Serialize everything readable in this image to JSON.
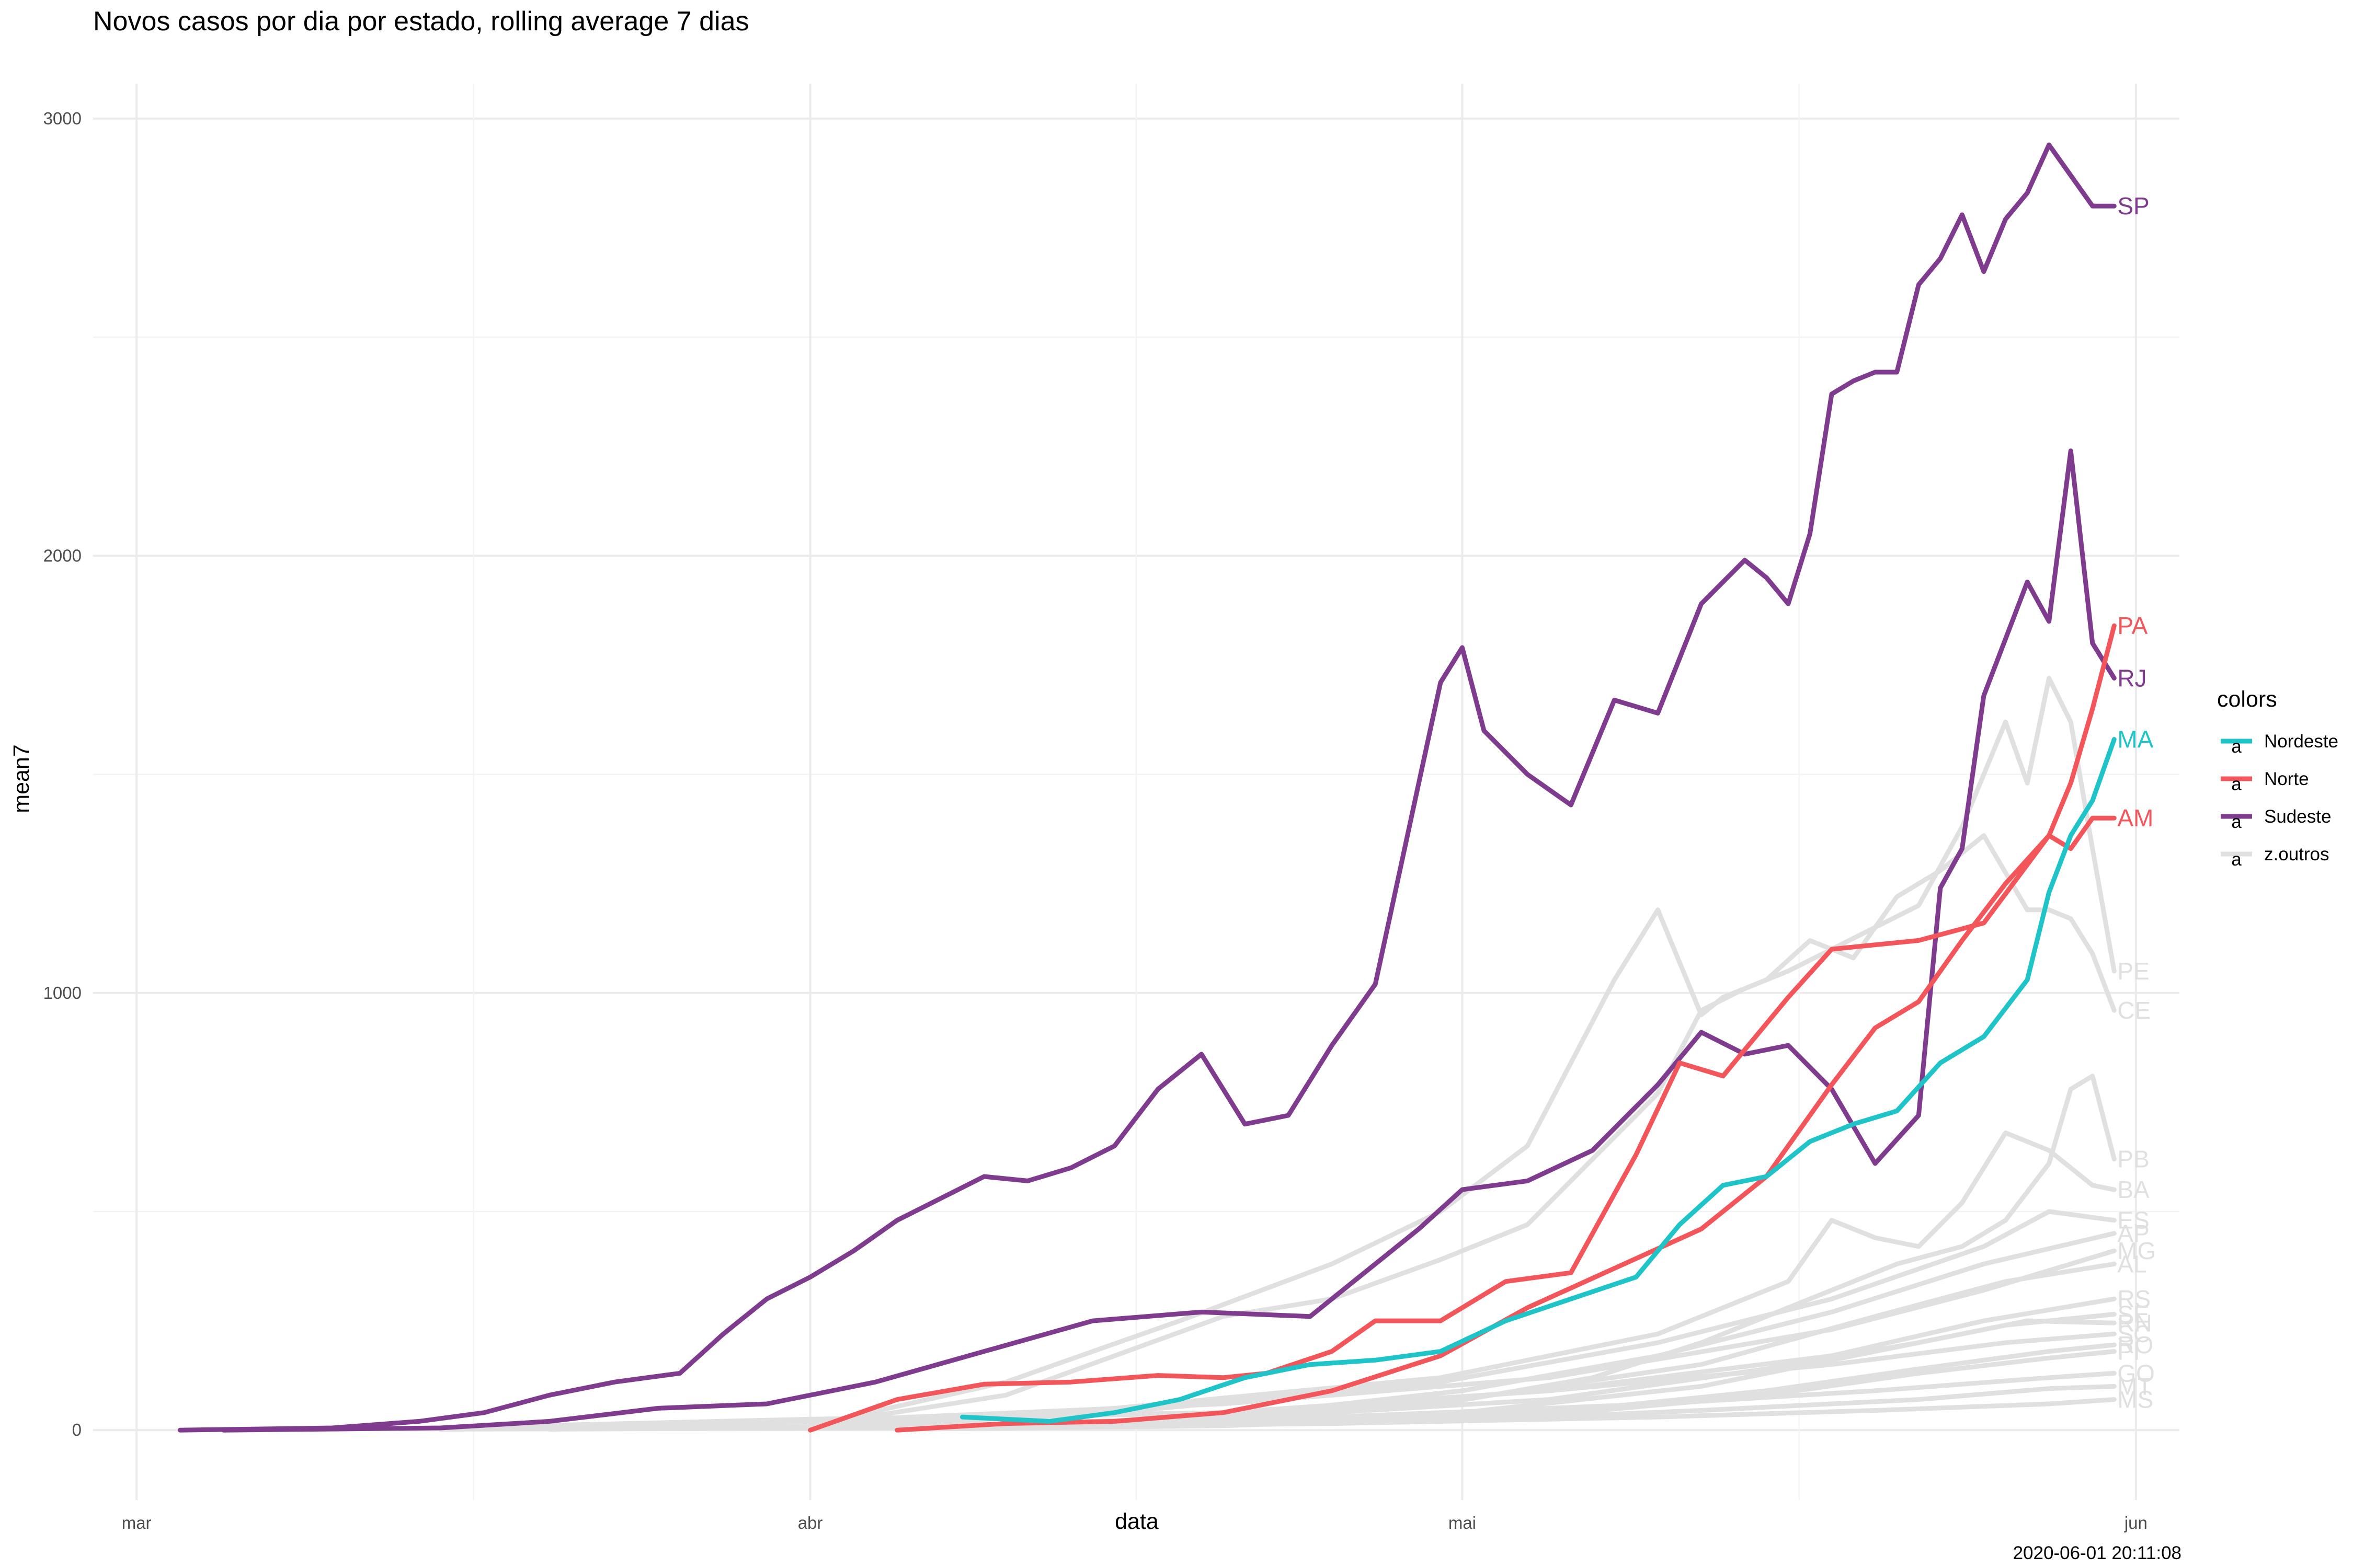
{
  "chart_data": {
    "type": "line",
    "title": "Novos casos por dia por estado, rolling average 7 dias",
    "xlabel": "data",
    "ylabel": "mean7",
    "caption": "2020-06-01 20:11:08",
    "x_ticks": [
      {
        "date": "2020-03-01",
        "label": "mar"
      },
      {
        "date": "2020-04-01",
        "label": "abr"
      },
      {
        "date": "2020-05-01",
        "label": "mai"
      },
      {
        "date": "2020-06-01",
        "label": "jun"
      }
    ],
    "y_ticks": [
      0,
      1000,
      2000,
      3000
    ],
    "xlim": [
      "2020-02-28",
      "2020-06-03"
    ],
    "ylim": [
      -160,
      3080
    ],
    "grid": true,
    "legend": {
      "title": "colors",
      "position": "right",
      "glyph": "a",
      "entries": [
        {
          "label": "Nordeste",
          "color": "#1ec4c8"
        },
        {
          "label": "Norte",
          "color": "#f2555a"
        },
        {
          "label": "Sudeste",
          "color": "#7f3b8d"
        },
        {
          "label": "z.outros",
          "color": "#e0e0e0"
        }
      ]
    },
    "series": [
      {
        "name": "SP",
        "group": "Sudeste",
        "color": "#7f3b8d",
        "x": [
          "2020-03-03",
          "2020-03-10",
          "2020-03-14",
          "2020-03-17",
          "2020-03-20",
          "2020-03-23",
          "2020-03-26",
          "2020-03-28",
          "2020-03-30",
          "2020-04-01",
          "2020-04-03",
          "2020-04-05",
          "2020-04-07",
          "2020-04-09",
          "2020-04-11",
          "2020-04-13",
          "2020-04-15",
          "2020-04-17",
          "2020-04-19",
          "2020-04-21",
          "2020-04-23",
          "2020-04-25",
          "2020-04-27",
          "2020-04-28",
          "2020-04-29",
          "2020-04-30",
          "2020-05-01",
          "2020-05-02",
          "2020-05-04",
          "2020-05-06",
          "2020-05-08",
          "2020-05-10",
          "2020-05-12",
          "2020-05-14",
          "2020-05-15",
          "2020-05-16",
          "2020-05-17",
          "2020-05-18",
          "2020-05-19",
          "2020-05-20",
          "2020-05-21",
          "2020-05-22",
          "2020-05-23",
          "2020-05-24",
          "2020-05-25",
          "2020-05-26",
          "2020-05-27",
          "2020-05-28",
          "2020-05-29",
          "2020-05-30",
          "2020-05-31"
        ],
        "y": [
          0,
          5,
          20,
          40,
          80,
          110,
          130,
          220,
          300,
          350,
          410,
          480,
          530,
          580,
          570,
          600,
          650,
          780,
          860,
          700,
          720,
          880,
          1020,
          1250,
          1480,
          1710,
          1790,
          1600,
          1500,
          1430,
          1670,
          1640,
          1890,
          1990,
          1950,
          1890,
          2050,
          2370,
          2400,
          2420,
          2420,
          2620,
          2680,
          2780,
          2650,
          2770,
          2830,
          2940,
          2870,
          2800,
          2800
        ]
      },
      {
        "name": "RJ",
        "group": "Sudeste",
        "color": "#7f3b8d",
        "x": [
          "2020-03-05",
          "2020-03-15",
          "2020-03-20",
          "2020-03-25",
          "2020-03-30",
          "2020-04-04",
          "2020-04-09",
          "2020-04-14",
          "2020-04-19",
          "2020-04-24",
          "2020-04-29",
          "2020-05-01",
          "2020-05-04",
          "2020-05-07",
          "2020-05-10",
          "2020-05-12",
          "2020-05-14",
          "2020-05-16",
          "2020-05-18",
          "2020-05-20",
          "2020-05-22",
          "2020-05-23",
          "2020-05-24",
          "2020-05-25",
          "2020-05-26",
          "2020-05-27",
          "2020-05-28",
          "2020-05-29",
          "2020-05-30",
          "2020-05-31"
        ],
        "y": [
          0,
          5,
          20,
          50,
          60,
          110,
          180,
          250,
          270,
          260,
          460,
          550,
          570,
          640,
          790,
          910,
          860,
          880,
          780,
          610,
          720,
          1240,
          1330,
          1680,
          1810,
          1940,
          1850,
          2240,
          1800,
          1720
        ]
      },
      {
        "name": "PA",
        "group": "Norte",
        "color": "#f2555a",
        "x": [
          "2020-04-05",
          "2020-04-10",
          "2020-04-15",
          "2020-04-20",
          "2020-04-25",
          "2020-04-30",
          "2020-05-04",
          "2020-05-08",
          "2020-05-12",
          "2020-05-15",
          "2020-05-18",
          "2020-05-20",
          "2020-05-22",
          "2020-05-24",
          "2020-05-26",
          "2020-05-28",
          "2020-05-29",
          "2020-05-30",
          "2020-05-31"
        ],
        "y": [
          0,
          15,
          20,
          40,
          90,
          170,
          280,
          370,
          460,
          580,
          790,
          920,
          980,
          1120,
          1250,
          1360,
          1480,
          1650,
          1840
        ]
      },
      {
        "name": "AM",
        "group": "Norte",
        "color": "#f2555a",
        "x": [
          "2020-04-01",
          "2020-04-05",
          "2020-04-09",
          "2020-04-13",
          "2020-04-17",
          "2020-04-20",
          "2020-04-22",
          "2020-04-25",
          "2020-04-27",
          "2020-04-30",
          "2020-05-03",
          "2020-05-06",
          "2020-05-09",
          "2020-05-11",
          "2020-05-13",
          "2020-05-16",
          "2020-05-18",
          "2020-05-20",
          "2020-05-22",
          "2020-05-25",
          "2020-05-28",
          "2020-05-29",
          "2020-05-30",
          "2020-05-31"
        ],
        "y": [
          0,
          70,
          105,
          110,
          125,
          120,
          130,
          180,
          250,
          250,
          340,
          360,
          630,
          840,
          810,
          990,
          1100,
          1110,
          1120,
          1160,
          1360,
          1330,
          1400,
          1400
        ]
      },
      {
        "name": "MA",
        "group": "Nordeste",
        "color": "#1ec4c8",
        "x": [
          "2020-04-08",
          "2020-04-12",
          "2020-04-15",
          "2020-04-18",
          "2020-04-21",
          "2020-04-24",
          "2020-04-27",
          "2020-04-30",
          "2020-05-03",
          "2020-05-06",
          "2020-05-09",
          "2020-05-11",
          "2020-05-13",
          "2020-05-15",
          "2020-05-17",
          "2020-05-19",
          "2020-05-21",
          "2020-05-23",
          "2020-05-25",
          "2020-05-27",
          "2020-05-28",
          "2020-05-29",
          "2020-05-30",
          "2020-05-31"
        ],
        "y": [
          30,
          20,
          40,
          70,
          120,
          150,
          160,
          180,
          250,
          300,
          350,
          470,
          560,
          580,
          660,
          700,
          730,
          840,
          900,
          1030,
          1230,
          1360,
          1440,
          1580
        ]
      },
      {
        "name": "PE",
        "group": "z.outros",
        "color": "#e0e0e0",
        "x": [
          "2020-04-01",
          "2020-04-10",
          "2020-04-20",
          "2020-04-25",
          "2020-04-30",
          "2020-05-04",
          "2020-05-07",
          "2020-05-10",
          "2020-05-12",
          "2020-05-14",
          "2020-05-16",
          "2020-05-18",
          "2020-05-20",
          "2020-05-22",
          "2020-05-24",
          "2020-05-26",
          "2020-05-27",
          "2020-05-28",
          "2020-05-29",
          "2020-05-30",
          "2020-05-31"
        ],
        "y": [
          10,
          80,
          260,
          300,
          390,
          470,
          620,
          770,
          960,
          1010,
          1050,
          1100,
          1150,
          1200,
          1380,
          1620,
          1480,
          1720,
          1620,
          1330,
          1050
        ]
      },
      {
        "name": "CE",
        "group": "z.outros",
        "color": "#e0e0e0",
        "x": [
          "2020-04-01",
          "2020-04-10",
          "2020-04-18",
          "2020-04-25",
          "2020-04-30",
          "2020-05-04",
          "2020-05-08",
          "2020-05-10",
          "2020-05-12",
          "2020-05-13",
          "2020-05-15",
          "2020-05-17",
          "2020-05-19",
          "2020-05-21",
          "2020-05-23",
          "2020-05-25",
          "2020-05-27",
          "2020-05-28",
          "2020-05-29",
          "2020-05-30",
          "2020-05-31"
        ],
        "y": [
          10,
          110,
          250,
          380,
          500,
          650,
          1030,
          1190,
          950,
          990,
          1030,
          1120,
          1080,
          1220,
          1280,
          1360,
          1190,
          1190,
          1170,
          1090,
          960
        ]
      },
      {
        "name": "PB",
        "group": "z.outros",
        "color": "#e0e0e0",
        "x": [
          "2020-04-10",
          "2020-04-20",
          "2020-04-30",
          "2020-05-07",
          "2020-05-12",
          "2020-05-17",
          "2020-05-21",
          "2020-05-24",
          "2020-05-26",
          "2020-05-28",
          "2020-05-29",
          "2020-05-30",
          "2020-05-31"
        ],
        "y": [
          5,
          20,
          60,
          120,
          200,
          300,
          380,
          420,
          480,
          610,
          780,
          810,
          620
        ]
      },
      {
        "name": "BA",
        "group": "z.outros",
        "color": "#e0e0e0",
        "x": [
          "2020-04-01",
          "2020-04-15",
          "2020-04-30",
          "2020-05-10",
          "2020-05-16",
          "2020-05-18",
          "2020-05-20",
          "2020-05-22",
          "2020-05-24",
          "2020-05-26",
          "2020-05-28",
          "2020-05-30",
          "2020-05-31"
        ],
        "y": [
          10,
          50,
          120,
          220,
          340,
          480,
          440,
          420,
          520,
          680,
          640,
          560,
          550
        ]
      },
      {
        "name": "ES",
        "group": "z.outros",
        "color": "#e0e0e0",
        "x": [
          "2020-04-01",
          "2020-04-15",
          "2020-04-30",
          "2020-05-10",
          "2020-05-18",
          "2020-05-25",
          "2020-05-28",
          "2020-05-31"
        ],
        "y": [
          5,
          40,
          110,
          200,
          300,
          420,
          500,
          480
        ]
      },
      {
        "name": "AP",
        "group": "z.outros",
        "color": "#e0e0e0",
        "x": [
          "2020-04-05",
          "2020-04-20",
          "2020-05-01",
          "2020-05-10",
          "2020-05-18",
          "2020-05-25",
          "2020-05-31"
        ],
        "y": [
          5,
          30,
          90,
          170,
          270,
          380,
          450
        ]
      },
      {
        "name": "MG",
        "group": "z.outros",
        "color": "#e0e0e0",
        "x": [
          "2020-03-15",
          "2020-04-01",
          "2020-04-20",
          "2020-05-05",
          "2020-05-18",
          "2020-05-25",
          "2020-05-31"
        ],
        "y": [
          5,
          20,
          60,
          120,
          230,
          320,
          410
        ]
      },
      {
        "name": "AL",
        "group": "z.outros",
        "color": "#e0e0e0",
        "x": [
          "2020-04-05",
          "2020-04-20",
          "2020-05-01",
          "2020-05-12",
          "2020-05-20",
          "2020-05-26",
          "2020-05-31"
        ],
        "y": [
          5,
          30,
          70,
          150,
          260,
          340,
          380
        ]
      },
      {
        "name": "RS",
        "group": "z.outros",
        "color": "#e0e0e0",
        "x": [
          "2020-03-15",
          "2020-04-01",
          "2020-04-20",
          "2020-05-05",
          "2020-05-18",
          "2020-05-25",
          "2020-05-31"
        ],
        "y": [
          5,
          20,
          40,
          90,
          170,
          250,
          300
        ]
      },
      {
        "name": "SE",
        "group": "z.outros",
        "color": "#e0e0e0",
        "x": [
          "2020-04-05",
          "2020-04-20",
          "2020-05-01",
          "2020-05-12",
          "2020-05-20",
          "2020-05-26",
          "2020-05-31"
        ],
        "y": [
          5,
          15,
          40,
          100,
          180,
          240,
          265
        ]
      },
      {
        "name": "RN",
        "group": "z.outros",
        "color": "#e0e0e0",
        "x": [
          "2020-04-01",
          "2020-04-20",
          "2020-05-05",
          "2020-05-15",
          "2020-05-22",
          "2020-05-27",
          "2020-05-31"
        ],
        "y": [
          5,
          25,
          70,
          140,
          200,
          250,
          245
        ]
      },
      {
        "name": "SC",
        "group": "z.outros",
        "color": "#e0e0e0",
        "x": [
          "2020-03-15",
          "2020-04-01",
          "2020-04-20",
          "2020-05-05",
          "2020-05-18",
          "2020-05-26",
          "2020-05-31"
        ],
        "y": [
          5,
          25,
          40,
          90,
          150,
          200,
          220
        ]
      },
      {
        "name": "RO",
        "group": "z.outros",
        "color": "#e0e0e0",
        "x": [
          "2020-04-05",
          "2020-04-20",
          "2020-05-05",
          "2020-05-15",
          "2020-05-22",
          "2020-05-28",
          "2020-05-31"
        ],
        "y": [
          2,
          10,
          40,
          90,
          140,
          180,
          195
        ]
      },
      {
        "name": "PI",
        "group": "z.outros",
        "color": "#e0e0e0",
        "x": [
          "2020-04-05",
          "2020-04-20",
          "2020-05-05",
          "2020-05-15",
          "2020-05-22",
          "2020-05-28",
          "2020-05-31"
        ],
        "y": [
          2,
          10,
          35,
          80,
          130,
          165,
          180
        ]
      },
      {
        "name": "GO",
        "group": "z.outros",
        "color": "#e0e0e0",
        "x": [
          "2020-03-15",
          "2020-04-05",
          "2020-04-25",
          "2020-05-10",
          "2020-05-20",
          "2020-05-28",
          "2020-05-31"
        ],
        "y": [
          2,
          10,
          30,
          60,
          90,
          120,
          130
        ]
      },
      {
        "name": "MT",
        "group": "z.outros",
        "color": "#e0e0e0",
        "x": [
          "2020-03-20",
          "2020-04-10",
          "2020-04-30",
          "2020-05-12",
          "2020-05-22",
          "2020-05-28",
          "2020-05-31"
        ],
        "y": [
          2,
          8,
          20,
          45,
          70,
          95,
          100
        ]
      },
      {
        "name": "MS",
        "group": "z.outros",
        "color": "#e0e0e0",
        "x": [
          "2020-03-15",
          "2020-04-05",
          "2020-04-25",
          "2020-05-10",
          "2020-05-20",
          "2020-05-28",
          "2020-05-31"
        ],
        "y": [
          2,
          5,
          15,
          30,
          45,
          60,
          70
        ]
      }
    ]
  }
}
